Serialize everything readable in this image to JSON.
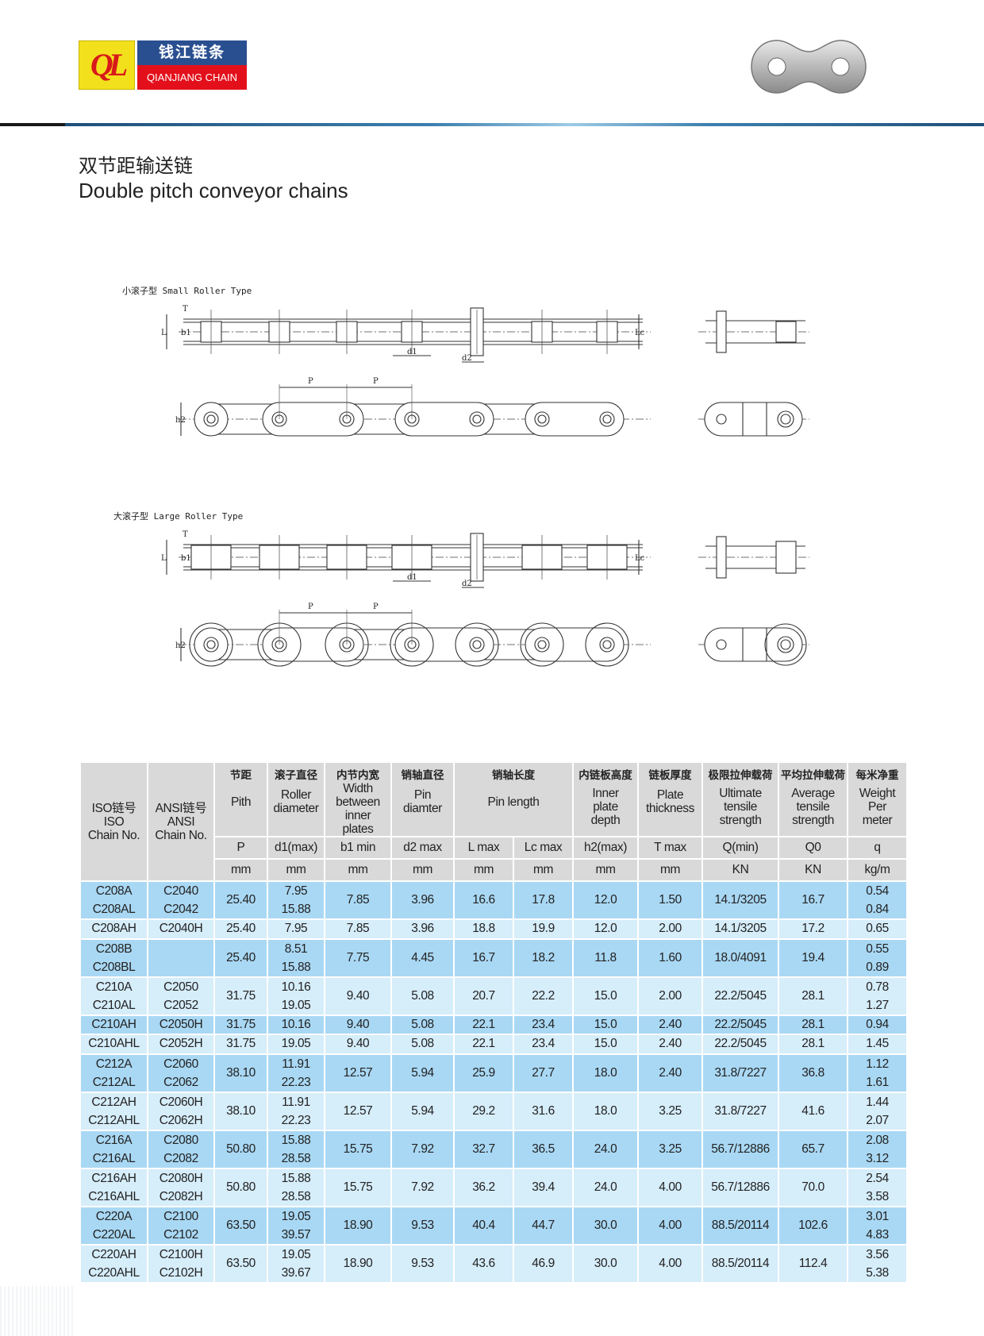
{
  "brand": {
    "logo_mark": "QL",
    "name_cn": "钱江链条",
    "name_en": "QIANJIANG CHAIN"
  },
  "title": {
    "cn": "双节距输送链",
    "en": "Double pitch conveyor chains"
  },
  "colors": {
    "brand_blue": "#2a4f91",
    "brand_red": "#e3101b",
    "brand_yellow": "#f3e01c",
    "row_dark": "#a9d8f4",
    "row_light": "#d6edfa",
    "header_gray": "#d9d9d9"
  },
  "drawings": {
    "small_label": "小滚子型 Small Roller Type",
    "large_label": "大滚子型 Large Roller Type",
    "dims": {
      "P": "P",
      "d1": "d1",
      "d2": "d2",
      "b1": "b1",
      "h2": "h2",
      "L": "L",
      "Lc": "Lc",
      "T": "T"
    }
  },
  "table": {
    "iso_header": [
      "ISO链号",
      "ISO",
      "Chain No."
    ],
    "ansi_header": [
      "ANSI链号",
      "ANSI",
      "Chain No."
    ],
    "columns": [
      {
        "key": "P",
        "cn": "节距",
        "en": [
          "Pith"
        ],
        "symbol": "P",
        "unit": "mm"
      },
      {
        "key": "d1",
        "cn": "滚子直径",
        "en": [
          "Roller",
          "diameter"
        ],
        "symbol": "d1(max)",
        "unit": "mm"
      },
      {
        "key": "b1",
        "cn": "内节内宽",
        "en": [
          "Width",
          "between",
          "inner",
          "plates"
        ],
        "symbol": "b1 min",
        "unit": "mm"
      },
      {
        "key": "d2",
        "cn": "销轴直径",
        "en": [
          "Pin",
          "diamter"
        ],
        "symbol": "d2 max",
        "unit": "mm"
      },
      {
        "key": "L",
        "cn": "销轴长度",
        "en": [
          "Pin length"
        ],
        "symbol": "L max",
        "unit": "mm",
        "span_with_next": true
      },
      {
        "key": "Lc",
        "symbol": "Lc max",
        "unit": "mm"
      },
      {
        "key": "h2",
        "cn": "内链板高度",
        "en": [
          "Inner",
          "plate",
          "depth"
        ],
        "symbol": "h2(max)",
        "unit": "mm"
      },
      {
        "key": "T",
        "cn": "链板厚度",
        "en": [
          "Plate",
          "thickness"
        ],
        "symbol": "T max",
        "unit": "mm"
      },
      {
        "key": "Q",
        "cn": "极限拉伸载荷",
        "en": [
          "Ultimate",
          "tensile",
          "strength"
        ],
        "symbol": "Q(min)",
        "unit": "KN"
      },
      {
        "key": "Q0",
        "cn": "平均拉伸载荷",
        "en": [
          "Average",
          "tensile",
          "strength"
        ],
        "symbol": "Q0",
        "unit": "KN"
      },
      {
        "key": "q",
        "cn": "每米净重",
        "en": [
          "Weight",
          "Per",
          "meter"
        ],
        "symbol": "q",
        "unit": "kg/m"
      }
    ],
    "rows": [
      {
        "iso": [
          "C208A",
          "C208AL"
        ],
        "ansi": [
          "C2040",
          "C2042"
        ],
        "P": "25.40",
        "d1": [
          "7.95",
          "15.88"
        ],
        "b1": "7.85",
        "d2": "3.96",
        "L": "16.6",
        "Lc": "17.8",
        "h2": "12.0",
        "T": "1.50",
        "Q": "14.1/3205",
        "Q0": "16.7",
        "q": [
          "0.54",
          "0.84"
        ]
      },
      {
        "iso": [
          "C208AH"
        ],
        "ansi": [
          "C2040H"
        ],
        "P": "25.40",
        "d1": [
          "7.95"
        ],
        "b1": "7.85",
        "d2": "3.96",
        "L": "18.8",
        "Lc": "19.9",
        "h2": "12.0",
        "T": "2.00",
        "Q": "14.1/3205",
        "Q0": "17.2",
        "q": [
          "0.65"
        ]
      },
      {
        "iso": [
          "C208B",
          "C208BL"
        ],
        "ansi": [],
        "P": "25.40",
        "d1": [
          "8.51",
          "15.88"
        ],
        "b1": "7.75",
        "d2": "4.45",
        "L": "16.7",
        "Lc": "18.2",
        "h2": "11.8",
        "T": "1.60",
        "Q": "18.0/4091",
        "Q0": "19.4",
        "q": [
          "0.55",
          "0.89"
        ]
      },
      {
        "iso": [
          "C210A",
          "C210AL"
        ],
        "ansi": [
          "C2050",
          "C2052"
        ],
        "P": "31.75",
        "d1": [
          "10.16",
          "19.05"
        ],
        "b1": "9.40",
        "d2": "5.08",
        "L": "20.7",
        "Lc": "22.2",
        "h2": "15.0",
        "T": "2.00",
        "Q": "22.2/5045",
        "Q0": "28.1",
        "q": [
          "0.78",
          "1.27"
        ]
      },
      {
        "iso": [
          "C210AH"
        ],
        "ansi": [
          "C2050H"
        ],
        "P": "31.75",
        "d1": [
          "10.16"
        ],
        "b1": "9.40",
        "d2": "5.08",
        "L": "22.1",
        "Lc": "23.4",
        "h2": "15.0",
        "T": "2.40",
        "Q": "22.2/5045",
        "Q0": "28.1",
        "q": [
          "0.94"
        ]
      },
      {
        "iso": [
          "C210AHL"
        ],
        "ansi": [
          "C2052H"
        ],
        "P": "31.75",
        "d1": [
          "19.05"
        ],
        "b1": "9.40",
        "d2": "5.08",
        "L": "22.1",
        "Lc": "23.4",
        "h2": "15.0",
        "T": "2.40",
        "Q": "22.2/5045",
        "Q0": "28.1",
        "q": [
          "1.45"
        ]
      },
      {
        "iso": [
          "C212A",
          "C212AL"
        ],
        "ansi": [
          "C2060",
          "C2062"
        ],
        "P": "38.10",
        "d1": [
          "11.91",
          "22.23"
        ],
        "b1": "12.57",
        "d2": "5.94",
        "L": "25.9",
        "Lc": "27.7",
        "h2": "18.0",
        "T": "2.40",
        "Q": "31.8/7227",
        "Q0": "36.8",
        "q": [
          "1.12",
          "1.61"
        ]
      },
      {
        "iso": [
          "C212AH",
          "C212AHL"
        ],
        "ansi": [
          "C2060H",
          "C2062H"
        ],
        "P": "38.10",
        "d1": [
          "11.91",
          "22.23"
        ],
        "b1": "12.57",
        "d2": "5.94",
        "L": "29.2",
        "Lc": "31.6",
        "h2": "18.0",
        "T": "3.25",
        "Q": "31.8/7227",
        "Q0": "41.6",
        "q": [
          "1.44",
          "2.07"
        ]
      },
      {
        "iso": [
          "C216A",
          "C216AL"
        ],
        "ansi": [
          "C2080",
          "C2082"
        ],
        "P": "50.80",
        "d1": [
          "15.88",
          "28.58"
        ],
        "b1": "15.75",
        "d2": "7.92",
        "L": "32.7",
        "Lc": "36.5",
        "h2": "24.0",
        "T": "3.25",
        "Q": "56.7/12886",
        "Q0": "65.7",
        "q": [
          "2.08",
          "3.12"
        ]
      },
      {
        "iso": [
          "C216AH",
          "C216AHL"
        ],
        "ansi": [
          "C2080H",
          "C2082H"
        ],
        "P": "50.80",
        "d1": [
          "15.88",
          "28.58"
        ],
        "b1": "15.75",
        "d2": "7.92",
        "L": "36.2",
        "Lc": "39.4",
        "h2": "24.0",
        "T": "4.00",
        "Q": "56.7/12886",
        "Q0": "70.0",
        "q": [
          "2.54",
          "3.58"
        ]
      },
      {
        "iso": [
          "C220A",
          "C220AL"
        ],
        "ansi": [
          "C2100",
          "C2102"
        ],
        "P": "63.50",
        "d1": [
          "19.05",
          "39.57"
        ],
        "b1": "18.90",
        "d2": "9.53",
        "L": "40.4",
        "Lc": "44.7",
        "h2": "30.0",
        "T": "4.00",
        "Q": "88.5/20114",
        "Q0": "102.6",
        "q": [
          "3.01",
          "4.83"
        ]
      },
      {
        "iso": [
          "C220AH",
          "C220AHL"
        ],
        "ansi": [
          "C2100H",
          "C2102H"
        ],
        "P": "63.50",
        "d1": [
          "19.05",
          "39.67"
        ],
        "b1": "18.90",
        "d2": "9.53",
        "L": "43.6",
        "Lc": "46.9",
        "h2": "30.0",
        "T": "4.00",
        "Q": "88.5/20114",
        "Q0": "112.4",
        "q": [
          "3.56",
          "5.38"
        ]
      }
    ]
  }
}
